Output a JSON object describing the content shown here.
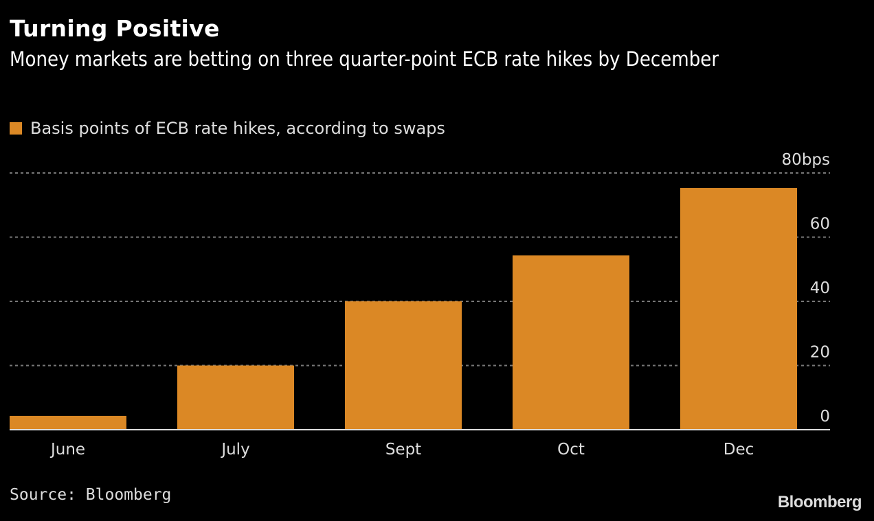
{
  "header": {
    "title": "Turning Positive",
    "subtitle": "Money markets are betting on three quarter-point ECB rate hikes by December"
  },
  "footer": {
    "source": "Source: Bloomberg",
    "logo": "Bloomberg"
  },
  "colors": {
    "bar": "#DB8825",
    "background": "#000000",
    "grid": "#777777",
    "axis": "#dddddd"
  },
  "chart_data": {
    "type": "bar",
    "title": "Turning Positive",
    "subtitle": "Money markets are betting on three quarter-point ECB rate hikes by December",
    "categories": [
      "June",
      "July",
      "Sept",
      "Oct",
      "Dec"
    ],
    "series": [
      {
        "name": "Basis points of ECB rate hikes, according to swaps",
        "values": [
          4.3,
          20,
          40,
          54.3,
          75.3
        ]
      }
    ],
    "xlabel": "",
    "ylabel": "",
    "ylim": [
      0,
      80
    ],
    "yticks": [
      0,
      20,
      40,
      60,
      80
    ],
    "ytick_labels": [
      "0",
      "20",
      "40",
      "60",
      "80bps"
    ],
    "y_axis_position": "right",
    "grid": true,
    "legend": "top-left",
    "source": "Source: Bloomberg"
  }
}
